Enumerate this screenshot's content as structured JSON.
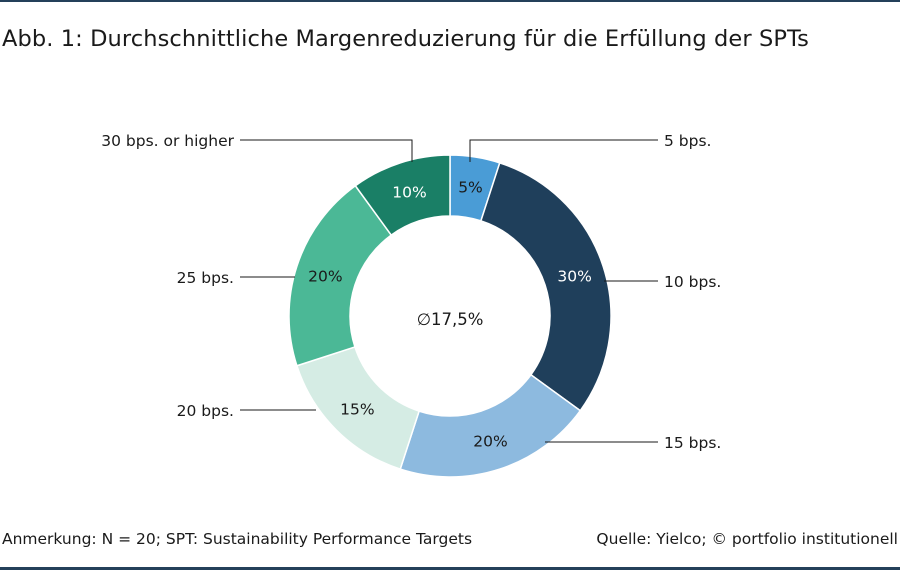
{
  "title": "Abb. 1: Durchschnittliche Margenreduzierung für die Erfüllung der SPTs",
  "footer": {
    "note": "Anmerkung: N = 20; SPT: Sustainability Performance Targets",
    "source": "Quelle: Yielco; © portfolio institutionell"
  },
  "chart_data": {
    "type": "pie",
    "variant": "donut",
    "center_label": "∅17,5%",
    "slices": [
      {
        "category": "5 bps.",
        "value": 5,
        "label": "5%",
        "color": "#4a9cd6",
        "text_color": "#1a1a1a"
      },
      {
        "category": "10 bps.",
        "value": 30,
        "label": "30%",
        "color": "#1f3f5b",
        "text_color": "#ffffff"
      },
      {
        "category": "15 bps.",
        "value": 20,
        "label": "20%",
        "color": "#8dbadf",
        "text_color": "#1a1a1a"
      },
      {
        "category": "20 bps.",
        "value": 15,
        "label": "15%",
        "color": "#d5ece4",
        "text_color": "#1a1a1a"
      },
      {
        "category": "25 bps.",
        "value": 20,
        "label": "20%",
        "color": "#4bb896",
        "text_color": "#1a1a1a"
      },
      {
        "category": "30 bps. or higher",
        "value": 10,
        "label": "10%",
        "color": "#1a7f66",
        "text_color": "#ffffff"
      }
    ]
  }
}
